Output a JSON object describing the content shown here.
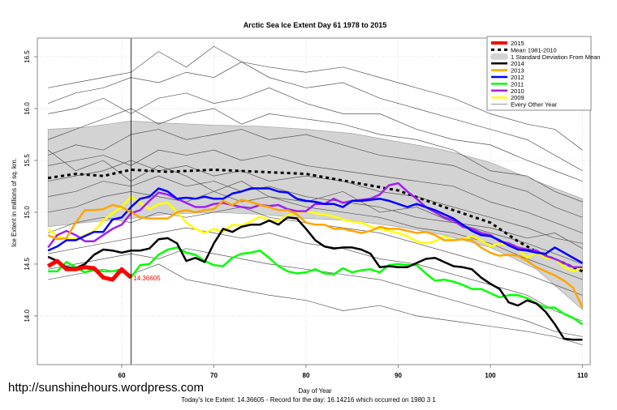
{
  "chart_data": {
    "type": "line",
    "title": "Arctic Sea Ice Extent Day 61 1978 to 2015",
    "xlabel": "Day of Year",
    "ylabel": "Ice Extent in millions of sq. km.",
    "xlim": [
      50.84,
      110.84
    ],
    "ylim": [
      13.53,
      16.68
    ],
    "xticks": [
      60,
      70,
      80,
      90,
      100,
      110
    ],
    "yticks": [
      14.0,
      14.5,
      15.0,
      15.5,
      16.0,
      16.5
    ],
    "ytick_labels": [
      "14.0",
      "14.5",
      "15.0",
      "15.5",
      "16.0",
      "16.5"
    ],
    "grid": true,
    "legend_placement": "top-right",
    "marker_day": 61,
    "annotation": {
      "text": "14.36605",
      "x": 61,
      "y": 14.36605,
      "color": "#ff0000"
    },
    "footer_text": "Today's Ice Extent: 14.36605  - Record for the day: 16.14216 which occurred on 1980 3 1",
    "std_band": {
      "name": "1 Standard Deviation From Mean",
      "color": "#d3d3d3",
      "x": [
        52,
        56,
        61,
        65,
        70,
        75,
        80,
        85,
        90,
        95,
        100,
        105,
        110
      ],
      "upper": [
        15.8,
        15.82,
        15.88,
        15.86,
        15.84,
        15.83,
        15.8,
        15.76,
        15.68,
        15.6,
        15.48,
        15.3,
        15.13
      ],
      "lower": [
        14.86,
        14.9,
        14.94,
        14.98,
        15.0,
        14.98,
        14.94,
        14.92,
        14.86,
        14.78,
        14.66,
        14.45,
        14.06
      ]
    },
    "mean": {
      "name": "Mean 1981-2010",
      "color": "#000000",
      "x": [
        52,
        55,
        58,
        61,
        65,
        70,
        75,
        80,
        85,
        90,
        95,
        100,
        103,
        105,
        108,
        110
      ],
      "y": [
        15.33,
        15.37,
        15.35,
        15.41,
        15.39,
        15.41,
        15.39,
        15.37,
        15.29,
        15.21,
        15.05,
        14.9,
        14.72,
        14.62,
        14.51,
        14.43
      ]
    },
    "series": [
      {
        "name": "2015",
        "color": "#ff0000",
        "width": 5,
        "x": [
          52,
          53,
          54,
          55,
          56,
          57,
          58,
          59,
          60,
          61
        ],
        "y": [
          14.48,
          14.53,
          14.45,
          14.45,
          14.47,
          14.46,
          14.37,
          14.35,
          14.45,
          14.37
        ]
      },
      {
        "name": "2014",
        "color": "#000000",
        "width": 2.5,
        "x": [
          52,
          53,
          54,
          55,
          56,
          57,
          58,
          59,
          60,
          61,
          62,
          63,
          64,
          65,
          66,
          67,
          68,
          69,
          70,
          71,
          72,
          73,
          74,
          75,
          76,
          77,
          78,
          79,
          80,
          81,
          82,
          83,
          84,
          85,
          86,
          87,
          88,
          89,
          90,
          91,
          92,
          93,
          94,
          95,
          96,
          97,
          98,
          99,
          100,
          101,
          102,
          103,
          104,
          105,
          106,
          107,
          108,
          109,
          110
        ],
        "y": [
          14.57,
          14.53,
          14.47,
          14.46,
          14.5,
          14.59,
          14.64,
          14.63,
          14.61,
          14.63,
          14.63,
          14.65,
          14.74,
          14.75,
          14.7,
          14.53,
          14.56,
          14.52,
          14.7,
          14.84,
          14.81,
          14.86,
          14.88,
          14.88,
          14.92,
          14.88,
          14.95,
          14.94,
          14.84,
          14.73,
          14.67,
          14.65,
          14.66,
          14.66,
          14.64,
          14.6,
          14.47,
          14.48,
          14.47,
          14.47,
          14.51,
          14.55,
          14.56,
          14.52,
          14.48,
          14.47,
          14.45,
          14.37,
          14.31,
          14.26,
          14.13,
          14.1,
          14.15,
          14.12,
          14.04,
          13.92,
          13.78,
          13.77,
          13.77
        ]
      },
      {
        "name": "2013",
        "color": "#ffa500",
        "width": 2.5,
        "x": [
          52,
          53,
          54,
          55,
          56,
          57,
          58,
          59,
          60,
          61,
          62,
          63,
          64,
          65,
          66,
          67,
          68,
          69,
          70,
          71,
          72,
          73,
          74,
          75,
          76,
          77,
          78,
          79,
          80,
          81,
          82,
          83,
          84,
          85,
          86,
          87,
          88,
          89,
          90,
          91,
          92,
          93,
          94,
          95,
          96,
          97,
          98,
          99,
          100,
          101,
          102,
          103,
          104,
          105,
          106,
          107,
          108,
          109,
          110
        ],
        "y": [
          14.78,
          14.74,
          14.75,
          14.9,
          15.02,
          15.02,
          15.03,
          15.07,
          15.05,
          15.0,
          14.95,
          14.94,
          14.94,
          14.94,
          15.0,
          15.02,
          15.0,
          15.02,
          15.03,
          15.11,
          15.07,
          15.12,
          15.1,
          15.07,
          15.05,
          15.02,
          15.02,
          14.98,
          14.9,
          14.88,
          14.88,
          14.84,
          14.84,
          14.82,
          14.8,
          14.82,
          14.86,
          14.84,
          14.84,
          14.82,
          14.8,
          14.81,
          14.78,
          14.73,
          14.73,
          14.74,
          14.73,
          14.66,
          14.61,
          14.58,
          14.59,
          14.58,
          14.53,
          14.47,
          14.43,
          14.39,
          14.34,
          14.27,
          14.08
        ]
      },
      {
        "name": "2012",
        "color": "#0000ff",
        "width": 2.5,
        "x": [
          52,
          53,
          54,
          55,
          56,
          57,
          58,
          59,
          60,
          61,
          62,
          63,
          64,
          65,
          66,
          67,
          68,
          69,
          70,
          71,
          72,
          73,
          74,
          75,
          76,
          77,
          78,
          79,
          80,
          81,
          82,
          83,
          84,
          85,
          86,
          87,
          88,
          89,
          90,
          91,
          92,
          93,
          94,
          95,
          96,
          97,
          98,
          99,
          100,
          101,
          102,
          103,
          104,
          105,
          106,
          107,
          108,
          109,
          110
        ],
        "y": [
          14.63,
          14.67,
          14.73,
          14.73,
          14.77,
          14.81,
          14.81,
          14.93,
          14.95,
          15.05,
          15.13,
          15.15,
          15.23,
          15.2,
          15.13,
          15.14,
          15.13,
          15.15,
          15.13,
          15.13,
          15.18,
          15.2,
          15.23,
          15.23,
          15.23,
          15.2,
          15.19,
          15.13,
          15.11,
          15.1,
          15.08,
          15.08,
          15.05,
          15.11,
          15.11,
          15.12,
          15.13,
          15.11,
          15.08,
          15.05,
          15.08,
          15.05,
          15.02,
          14.98,
          14.94,
          14.88,
          14.82,
          14.78,
          14.77,
          14.73,
          14.68,
          14.64,
          14.63,
          14.61,
          14.6,
          14.66,
          14.61,
          14.56,
          14.51
        ]
      },
      {
        "name": "2011",
        "color": "#00ff00",
        "width": 2.5,
        "x": [
          52,
          53,
          54,
          55,
          56,
          57,
          58,
          59,
          60,
          61,
          62,
          63,
          64,
          65,
          66,
          67,
          68,
          69,
          70,
          71,
          72,
          73,
          74,
          75,
          76,
          77,
          78,
          79,
          80,
          81,
          82,
          83,
          84,
          85,
          86,
          87,
          88,
          89,
          90,
          91,
          92,
          93,
          94,
          95,
          96,
          97,
          98,
          99,
          100,
          101,
          102,
          103,
          104,
          105,
          106,
          107,
          108,
          109,
          110
        ],
        "y": [
          14.43,
          14.43,
          14.52,
          14.47,
          14.42,
          14.45,
          14.43,
          14.43,
          14.45,
          14.37,
          14.49,
          14.5,
          14.59,
          14.64,
          14.66,
          14.61,
          14.59,
          14.53,
          14.49,
          14.48,
          14.56,
          14.6,
          14.61,
          14.63,
          14.56,
          14.48,
          14.43,
          14.41,
          14.42,
          14.45,
          14.41,
          14.4,
          14.46,
          14.42,
          14.44,
          14.45,
          14.42,
          14.49,
          14.5,
          14.49,
          14.49,
          14.41,
          14.34,
          14.35,
          14.33,
          14.3,
          14.26,
          14.26,
          14.22,
          14.18,
          14.2,
          14.2,
          14.17,
          14.12,
          14.08,
          14.08,
          14.02,
          13.98,
          13.92
        ]
      },
      {
        "name": "2010",
        "color": "#a020f0",
        "width": 2.5,
        "x": [
          52,
          53,
          54,
          55,
          56,
          57,
          58,
          59,
          60,
          61,
          62,
          63,
          64,
          65,
          66,
          67,
          68,
          69,
          70,
          71,
          72,
          73,
          74,
          75,
          76,
          77,
          78,
          79,
          80,
          81,
          82,
          83,
          84,
          85,
          86,
          87,
          88,
          89,
          90,
          91,
          92,
          93,
          94,
          95,
          96,
          97,
          98,
          99,
          100,
          101,
          102,
          103,
          104,
          105,
          106,
          107,
          108,
          109,
          110
        ],
        "y": [
          14.66,
          14.78,
          14.82,
          14.78,
          14.72,
          14.72,
          14.78,
          14.84,
          14.88,
          14.99,
          15.02,
          15.11,
          15.19,
          15.17,
          15.13,
          15.09,
          15.05,
          15.05,
          15.08,
          15.09,
          15.07,
          15.05,
          15.04,
          15.07,
          15.06,
          15.07,
          15.03,
          15.01,
          15.01,
          15.08,
          15.08,
          15.13,
          15.09,
          15.11,
          15.12,
          15.13,
          15.17,
          15.26,
          15.28,
          15.2,
          15.13,
          15.05,
          15.0,
          14.95,
          14.92,
          14.86,
          14.84,
          14.8,
          14.78,
          14.72,
          14.7,
          14.66,
          14.64,
          14.63,
          14.58,
          14.55,
          14.51,
          14.47,
          14.47
        ]
      },
      {
        "name": "2009",
        "color": "#ffff00",
        "width": 2.5,
        "x": [
          52,
          53,
          54,
          55,
          56,
          57,
          58,
          59,
          60,
          61,
          62,
          63,
          64,
          65,
          66,
          67,
          68,
          69,
          70,
          71,
          72,
          73,
          74,
          75,
          76,
          77,
          78,
          79,
          80,
          81,
          82,
          83,
          84,
          85,
          86,
          87,
          88,
          89,
          90,
          91,
          92,
          93,
          94,
          95,
          96,
          97,
          98,
          99,
          100,
          101,
          102,
          103,
          104,
          105,
          106,
          107,
          108,
          109,
          110
        ],
        "y": [
          14.84,
          14.77,
          14.74,
          14.74,
          14.78,
          14.82,
          14.92,
          14.99,
          15.05,
          15.15,
          15.09,
          15.03,
          15.08,
          15.09,
          15.0,
          14.9,
          14.84,
          14.8,
          14.84,
          14.81,
          14.88,
          14.87,
          14.91,
          14.96,
          14.92,
          14.92,
          14.97,
          15.0,
          15.01,
          14.99,
          14.98,
          14.96,
          14.93,
          14.91,
          14.9,
          14.86,
          14.84,
          14.82,
          14.8,
          14.77,
          14.72,
          14.7,
          14.72,
          14.77,
          14.73,
          14.74,
          14.77,
          14.73,
          14.67,
          14.7,
          14.68,
          14.64,
          14.56,
          14.61,
          14.56,
          14.55,
          14.47,
          14.43,
          14.47
        ]
      }
    ],
    "other_years": {
      "name": "Every Other Year",
      "color": "#555555",
      "x": [
        52,
        55,
        58,
        61,
        64,
        67,
        70,
        73,
        76,
        80,
        84,
        88,
        92,
        96,
        100,
        104,
        107,
        110
      ],
      "lines": [
        [
          16.2,
          16.25,
          16.3,
          16.35,
          16.55,
          16.4,
          16.6,
          16.45,
          16.4,
          16.35,
          16.4,
          16.3,
          16.2,
          16.1,
          15.95,
          15.85,
          15.8,
          15.6
        ],
        [
          16.05,
          16.15,
          16.2,
          16.3,
          16.25,
          16.35,
          16.3,
          16.45,
          16.3,
          16.2,
          16.25,
          16.1,
          16.0,
          15.9,
          15.8,
          15.7,
          15.55,
          15.4
        ],
        [
          15.95,
          16.0,
          16.1,
          15.95,
          16.1,
          16.15,
          16.05,
          16.1,
          16.2,
          16.05,
          15.95,
          15.95,
          15.8,
          15.7,
          15.65,
          15.5,
          15.4,
          15.3
        ],
        [
          15.7,
          15.8,
          15.9,
          16.0,
          15.85,
          15.95,
          16.0,
          15.85,
          15.95,
          15.9,
          15.85,
          15.75,
          15.7,
          15.6,
          15.4,
          15.35,
          15.2,
          15.1
        ],
        [
          15.55,
          15.65,
          15.6,
          15.75,
          15.8,
          15.7,
          15.75,
          15.8,
          15.7,
          15.75,
          15.65,
          15.55,
          15.5,
          15.45,
          15.3,
          15.2,
          15.05,
          14.95
        ],
        [
          15.45,
          15.5,
          15.55,
          15.45,
          15.6,
          15.55,
          15.6,
          15.5,
          15.55,
          15.45,
          15.4,
          15.35,
          15.3,
          15.25,
          15.1,
          15.0,
          14.9,
          14.8
        ],
        [
          15.3,
          15.35,
          15.4,
          15.5,
          15.4,
          15.45,
          15.35,
          15.4,
          15.3,
          15.35,
          15.3,
          15.2,
          15.15,
          15.05,
          14.95,
          14.85,
          14.75,
          14.7
        ],
        [
          15.15,
          15.2,
          15.3,
          15.25,
          15.35,
          15.25,
          15.3,
          15.2,
          15.25,
          15.15,
          15.1,
          15.05,
          14.95,
          14.9,
          14.8,
          14.7,
          14.6,
          14.5
        ],
        [
          15.0,
          15.05,
          15.15,
          15.2,
          15.15,
          15.1,
          15.2,
          15.1,
          15.15,
          15.05,
          15.0,
          14.95,
          14.85,
          14.8,
          14.7,
          14.55,
          14.45,
          14.35
        ],
        [
          14.8,
          14.9,
          14.95,
          14.9,
          15.0,
          14.95,
          15.0,
          15.05,
          14.95,
          14.9,
          14.85,
          14.8,
          14.7,
          14.6,
          14.5,
          14.4,
          14.3,
          14.2
        ],
        [
          14.6,
          14.65,
          14.7,
          14.75,
          14.8,
          14.85,
          14.8,
          14.75,
          14.8,
          14.7,
          14.65,
          14.55,
          14.5,
          14.4,
          14.3,
          14.2,
          14.05,
          13.95
        ],
        [
          14.45,
          14.5,
          14.55,
          14.6,
          14.55,
          14.65,
          14.6,
          14.55,
          14.5,
          14.45,
          14.4,
          14.35,
          14.25,
          14.15,
          14.05,
          13.95,
          13.85,
          13.8
        ],
        [
          14.35,
          14.4,
          14.45,
          14.4,
          14.5,
          14.35,
          14.3,
          14.25,
          14.2,
          14.15,
          14.05,
          14.1,
          14.0,
          13.95,
          13.9,
          13.85,
          13.8,
          13.72
        ],
        [
          15.6,
          15.4,
          15.5,
          15.3,
          15.45,
          15.35,
          15.2,
          15.3,
          15.15,
          15.1,
          15.2,
          15.0,
          15.05,
          14.9,
          14.85,
          14.75,
          14.8,
          14.65
        ]
      ]
    }
  },
  "watermark": "http://sunshinehours.wordpress.com"
}
